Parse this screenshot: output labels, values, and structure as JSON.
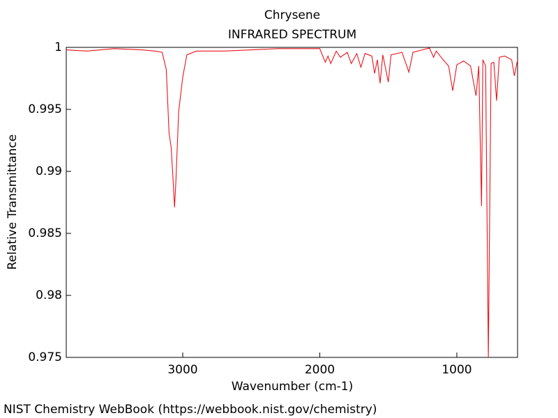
{
  "chart_data": {
    "type": "line",
    "title": "Chrysene",
    "subtitle": "INFRARED SPECTRUM",
    "x_label": "Wavenumber (cm-1)",
    "y_label": "Relative Transmittance",
    "footer": "NIST Chemistry WebBook (https://webbook.nist.gov/chemistry)",
    "x": [
      3850,
      3700,
      3500,
      3300,
      3200,
      3150,
      3120,
      3100,
      3085,
      3070,
      3060,
      3050,
      3030,
      3000,
      2970,
      2900,
      2700,
      2500,
      2300,
      2000,
      1960,
      1940,
      1920,
      1880,
      1850,
      1800,
      1770,
      1730,
      1700,
      1670,
      1620,
      1600,
      1580,
      1560,
      1540,
      1500,
      1480,
      1400,
      1350,
      1320,
      1200,
      1170,
      1150,
      1100,
      1060,
      1030,
      1000,
      950,
      900,
      860,
      840,
      820,
      810,
      790,
      770,
      750,
      730,
      710,
      690,
      650,
      600,
      580,
      557
    ],
    "series": [
      {
        "name": "Chrysene",
        "color": "#e8141c",
        "values": [
          0.9998,
          0.9997,
          0.9999,
          0.9998,
          0.9997,
          0.9996,
          0.9982,
          0.9931,
          0.992,
          0.9892,
          0.9871,
          0.9892,
          0.9948,
          0.9976,
          0.9994,
          0.9997,
          0.9997,
          0.9998,
          0.9999,
          0.9999,
          0.9988,
          0.9993,
          0.9987,
          0.9997,
          0.9992,
          0.9996,
          0.9987,
          0.9995,
          0.9984,
          0.9995,
          0.9993,
          0.9979,
          0.999,
          0.9971,
          0.9994,
          0.9972,
          0.9994,
          0.9996,
          0.998,
          0.9996,
          0.99995,
          0.9992,
          0.9997,
          0.999,
          0.9985,
          0.9965,
          0.9986,
          0.9989,
          0.9985,
          0.9961,
          0.9985,
          0.9872,
          0.999,
          0.9985,
          0.975,
          0.9987,
          0.9988,
          0.9957,
          0.9992,
          0.9993,
          0.999,
          0.9977,
          0.999
        ]
      }
    ],
    "xlim": [
      3850,
      557
    ],
    "xticks": [
      3000,
      2000,
      1000
    ],
    "ylim": [
      0.975,
      1
    ],
    "yticks": [
      0.975,
      0.98,
      0.985,
      0.99,
      0.995,
      1
    ],
    "grid": false
  }
}
